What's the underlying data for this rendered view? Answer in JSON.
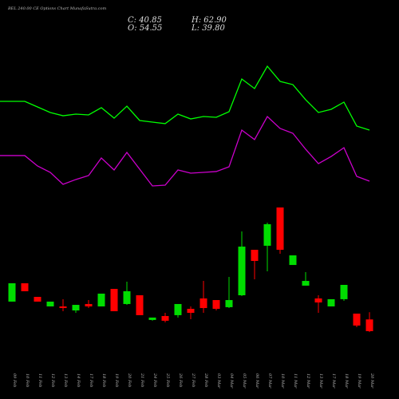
{
  "chart_data": {
    "type": "candlestick",
    "title": "BEL 240.00 CE Options Chart MunafaSutra.com",
    "header": [
      "C: 40.85",
      "O: 54.55",
      "H: 62.90",
      "L: 39.80"
    ],
    "categories": [
      "09 Feb",
      "10 Feb",
      "11 Feb",
      "12 Feb",
      "13 Feb",
      "14 Feb",
      "17 Feb",
      "18 Feb",
      "19 Feb",
      "20 Feb",
      "21 Feb",
      "24 Feb",
      "25 Feb",
      "26 Feb",
      "27 Feb",
      "28 Feb",
      "03 Mar",
      "04 Mar",
      "05 Mar",
      "06 Mar",
      "07 Mar",
      "10 Mar",
      "11 Mar",
      "12 Mar",
      "13 Mar",
      "17 Mar",
      "18 Mar",
      "19 Mar",
      "20 Mar"
    ],
    "open": [
      75.3,
      96.7,
      80.8,
      69.7,
      69.7,
      65.0,
      72.5,
      69.7,
      90.1,
      72.5,
      82.7,
      53.9,
      58.5,
      59.5,
      66.9,
      79.0,
      77.1,
      68.8,
      82.7,
      135.7,
      140.4,
      185.0,
      118.0,
      93.9,
      79.0,
      69.7,
      78.1,
      61.3,
      54.55
    ],
    "high": [
      96.7,
      96.7,
      80.8,
      75.3,
      78.1,
      71.5,
      77.1,
      84.6,
      90.1,
      98.5,
      82.7,
      56.7,
      62.2,
      72.5,
      69.7,
      99.4,
      77.1,
      104.1,
      157.1,
      135.7,
      167.3,
      185.0,
      129.2,
      109.7,
      82.7,
      78.1,
      94.8,
      61.3,
      62.9
    ],
    "low": [
      75.3,
      87.4,
      75.3,
      69.7,
      64.1,
      62.2,
      67.8,
      69.7,
      64.1,
      71.5,
      59.5,
      53.0,
      51.1,
      56.7,
      54.8,
      62.2,
      65.0,
      67.8,
      81.8,
      101.3,
      110.6,
      131.1,
      118.0,
      93.9,
      62.2,
      69.7,
      76.2,
      45.5,
      39.8
    ],
    "close": [
      96.7,
      87.4,
      75.3,
      75.3,
      67.8,
      71.5,
      69.7,
      84.6,
      64.1,
      87.4,
      59.5,
      56.7,
      53.0,
      72.5,
      62.2,
      67.8,
      66.9,
      77.1,
      139.4,
      122.7,
      165.5,
      135.7,
      129.2,
      99.4,
      74.3,
      78.1,
      94.8,
      47.4,
      40.85
    ],
    "up_color": "#00dd00",
    "down_color": "#ff0000",
    "lines": [
      {
        "color": "#00ff00",
        "values": [
          308.7,
          308.7,
          302.2,
          295.7,
          291.9,
          293.8,
          292.9,
          301.3,
          289.1,
          303.1,
          286.4,
          284.5,
          282.7,
          293.8,
          288.2,
          291.0,
          290.1,
          296.6,
          334.7,
          323.6,
          349.6,
          331.9,
          328.2,
          310.6,
          295.7,
          299.4,
          307.8,
          279.9,
          275.2
        ]
      },
      {
        "color": "#cc00cc",
        "values": [
          245.5,
          245.5,
          233.4,
          225.9,
          212.0,
          217.6,
          222.2,
          242.7,
          228.7,
          249.2,
          229.6,
          210.1,
          211.0,
          228.7,
          225.0,
          225.9,
          226.9,
          232.4,
          275.2,
          264.1,
          291.0,
          277.1,
          271.5,
          252.9,
          236.1,
          244.5,
          254.7,
          221.3,
          215.7
        ]
      }
    ],
    "ylim": [
      17.6,
      408.2
    ]
  }
}
